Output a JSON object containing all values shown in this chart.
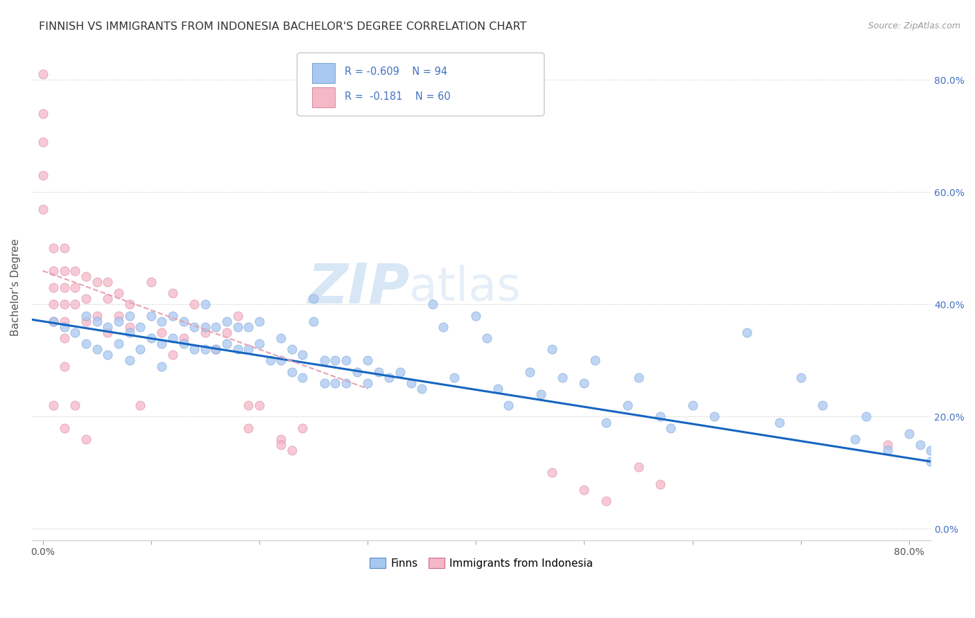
{
  "title": "FINNISH VS IMMIGRANTS FROM INDONESIA BACHELOR'S DEGREE CORRELATION CHART",
  "source": "Source: ZipAtlas.com",
  "ylabel": "Bachelor's Degree",
  "watermark_zip": "ZIP",
  "watermark_atlas": "atlas",
  "xlim": [
    -0.01,
    0.82
  ],
  "ylim": [
    -0.02,
    0.88
  ],
  "color_finns": "#a8c8f0",
  "color_indonesia": "#f4b8c8",
  "color_finn_line": "#1565c0",
  "color_indo_line": "#e8a0b0",
  "color_grid": "#cccccc",
  "title_color": "#333333",
  "source_color": "#999999",
  "legend_text_color": "#4472c4",
  "background_color": "#ffffff",
  "finns_x": [
    0.01,
    0.02,
    0.03,
    0.04,
    0.04,
    0.05,
    0.05,
    0.06,
    0.06,
    0.07,
    0.07,
    0.08,
    0.08,
    0.08,
    0.09,
    0.09,
    0.1,
    0.1,
    0.11,
    0.11,
    0.11,
    0.12,
    0.12,
    0.13,
    0.13,
    0.14,
    0.14,
    0.15,
    0.15,
    0.15,
    0.16,
    0.16,
    0.17,
    0.17,
    0.18,
    0.18,
    0.19,
    0.19,
    0.2,
    0.2,
    0.21,
    0.22,
    0.22,
    0.23,
    0.23,
    0.24,
    0.24,
    0.25,
    0.25,
    0.26,
    0.26,
    0.27,
    0.27,
    0.28,
    0.28,
    0.29,
    0.3,
    0.3,
    0.31,
    0.32,
    0.33,
    0.34,
    0.35,
    0.36,
    0.37,
    0.38,
    0.4,
    0.41,
    0.42,
    0.43,
    0.45,
    0.46,
    0.47,
    0.48,
    0.5,
    0.51,
    0.52,
    0.54,
    0.55,
    0.57,
    0.58,
    0.6,
    0.62,
    0.65,
    0.68,
    0.7,
    0.72,
    0.75,
    0.76,
    0.78,
    0.8,
    0.81,
    0.82,
    0.82
  ],
  "finns_y": [
    0.37,
    0.36,
    0.35,
    0.38,
    0.33,
    0.37,
    0.32,
    0.36,
    0.31,
    0.37,
    0.33,
    0.38,
    0.35,
    0.3,
    0.36,
    0.32,
    0.38,
    0.34,
    0.37,
    0.33,
    0.29,
    0.38,
    0.34,
    0.37,
    0.33,
    0.36,
    0.32,
    0.4,
    0.36,
    0.32,
    0.36,
    0.32,
    0.37,
    0.33,
    0.36,
    0.32,
    0.36,
    0.32,
    0.37,
    0.33,
    0.3,
    0.34,
    0.3,
    0.32,
    0.28,
    0.31,
    0.27,
    0.41,
    0.37,
    0.3,
    0.26,
    0.3,
    0.26,
    0.3,
    0.26,
    0.28,
    0.3,
    0.26,
    0.28,
    0.27,
    0.28,
    0.26,
    0.25,
    0.4,
    0.36,
    0.27,
    0.38,
    0.34,
    0.25,
    0.22,
    0.28,
    0.24,
    0.32,
    0.27,
    0.26,
    0.3,
    0.19,
    0.22,
    0.27,
    0.2,
    0.18,
    0.22,
    0.2,
    0.35,
    0.19,
    0.27,
    0.22,
    0.16,
    0.2,
    0.14,
    0.17,
    0.15,
    0.12,
    0.14
  ],
  "indo_x": [
    0.0,
    0.0,
    0.0,
    0.0,
    0.0,
    0.01,
    0.01,
    0.01,
    0.01,
    0.01,
    0.01,
    0.02,
    0.02,
    0.02,
    0.02,
    0.02,
    0.02,
    0.02,
    0.02,
    0.03,
    0.03,
    0.03,
    0.03,
    0.04,
    0.04,
    0.04,
    0.04,
    0.05,
    0.05,
    0.06,
    0.06,
    0.06,
    0.07,
    0.07,
    0.08,
    0.08,
    0.09,
    0.1,
    0.11,
    0.12,
    0.12,
    0.13,
    0.14,
    0.15,
    0.16,
    0.17,
    0.18,
    0.19,
    0.19,
    0.2,
    0.22,
    0.22,
    0.23,
    0.24,
    0.47,
    0.5,
    0.52,
    0.55,
    0.57,
    0.78
  ],
  "indo_y": [
    0.81,
    0.74,
    0.69,
    0.63,
    0.57,
    0.5,
    0.46,
    0.43,
    0.4,
    0.37,
    0.22,
    0.5,
    0.46,
    0.43,
    0.4,
    0.37,
    0.34,
    0.29,
    0.18,
    0.46,
    0.43,
    0.4,
    0.22,
    0.45,
    0.41,
    0.37,
    0.16,
    0.44,
    0.38,
    0.44,
    0.41,
    0.35,
    0.42,
    0.38,
    0.4,
    0.36,
    0.22,
    0.44,
    0.35,
    0.31,
    0.42,
    0.34,
    0.4,
    0.35,
    0.32,
    0.35,
    0.38,
    0.22,
    0.18,
    0.22,
    0.16,
    0.15,
    0.14,
    0.18,
    0.1,
    0.07,
    0.05,
    0.11,
    0.08,
    0.15
  ]
}
